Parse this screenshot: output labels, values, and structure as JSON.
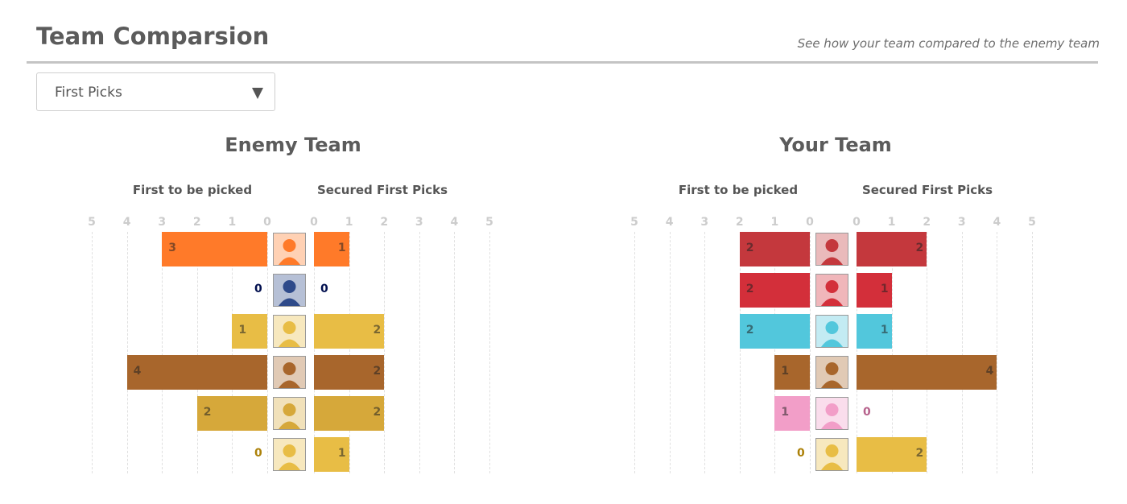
{
  "header": {
    "title": "Team Comparsion",
    "subtitle": "See how  your  team compared to the enemy team"
  },
  "dropdown": {
    "selected": "First Picks"
  },
  "chart_data": [
    {
      "type": "bar",
      "title": "Enemy Team",
      "left_label": "First to be picked",
      "right_label": "Secured First Picks",
      "xlim": [
        0,
        5
      ],
      "ticks": [
        5,
        4,
        3,
        2,
        1,
        0
      ],
      "rows": [
        {
          "hero": "tracer-icon",
          "color": "#ff7a29",
          "picked": 3,
          "secured": 1
        },
        {
          "hero": "soldier-76-icon",
          "color": "#2e4a8a",
          "picked": 0,
          "secured": 0
        },
        {
          "hero": "pharah-icon",
          "color": "#e8bd45",
          "picked": 1,
          "secured": 2
        },
        {
          "hero": "wrecking-ball-icon",
          "color": "#a8662c",
          "picked": 4,
          "secured": 2
        },
        {
          "hero": "zenyatta-icon",
          "color": "#d6a83a",
          "picked": 2,
          "secured": 2
        },
        {
          "hero": "mercy-icon",
          "color": "#e8bd45",
          "picked": 0,
          "secured": 1
        }
      ]
    },
    {
      "type": "bar",
      "title": "Your Team",
      "left_label": "First to be picked",
      "right_label": "Secured First Picks",
      "xlim": [
        0,
        5
      ],
      "ticks": [
        5,
        4,
        3,
        2,
        1,
        0
      ],
      "rows": [
        {
          "hero": "doomfist-icon",
          "color": "#c4383d",
          "picked": 2,
          "secured": 2
        },
        {
          "hero": "mccree-icon",
          "color": "#d32f3a",
          "picked": 2,
          "secured": 1
        },
        {
          "hero": "symmetra-icon",
          "color": "#52c7dc",
          "picked": 2,
          "secured": 1
        },
        {
          "hero": "wrecking-ball-icon",
          "color": "#a8662c",
          "picked": 1,
          "secured": 4
        },
        {
          "hero": "dva-icon",
          "color": "#f29ec8",
          "picked": 1,
          "secured": 0
        },
        {
          "hero": "mercy-icon",
          "color": "#e8bd45",
          "picked": 0,
          "secured": 2
        }
      ]
    }
  ]
}
